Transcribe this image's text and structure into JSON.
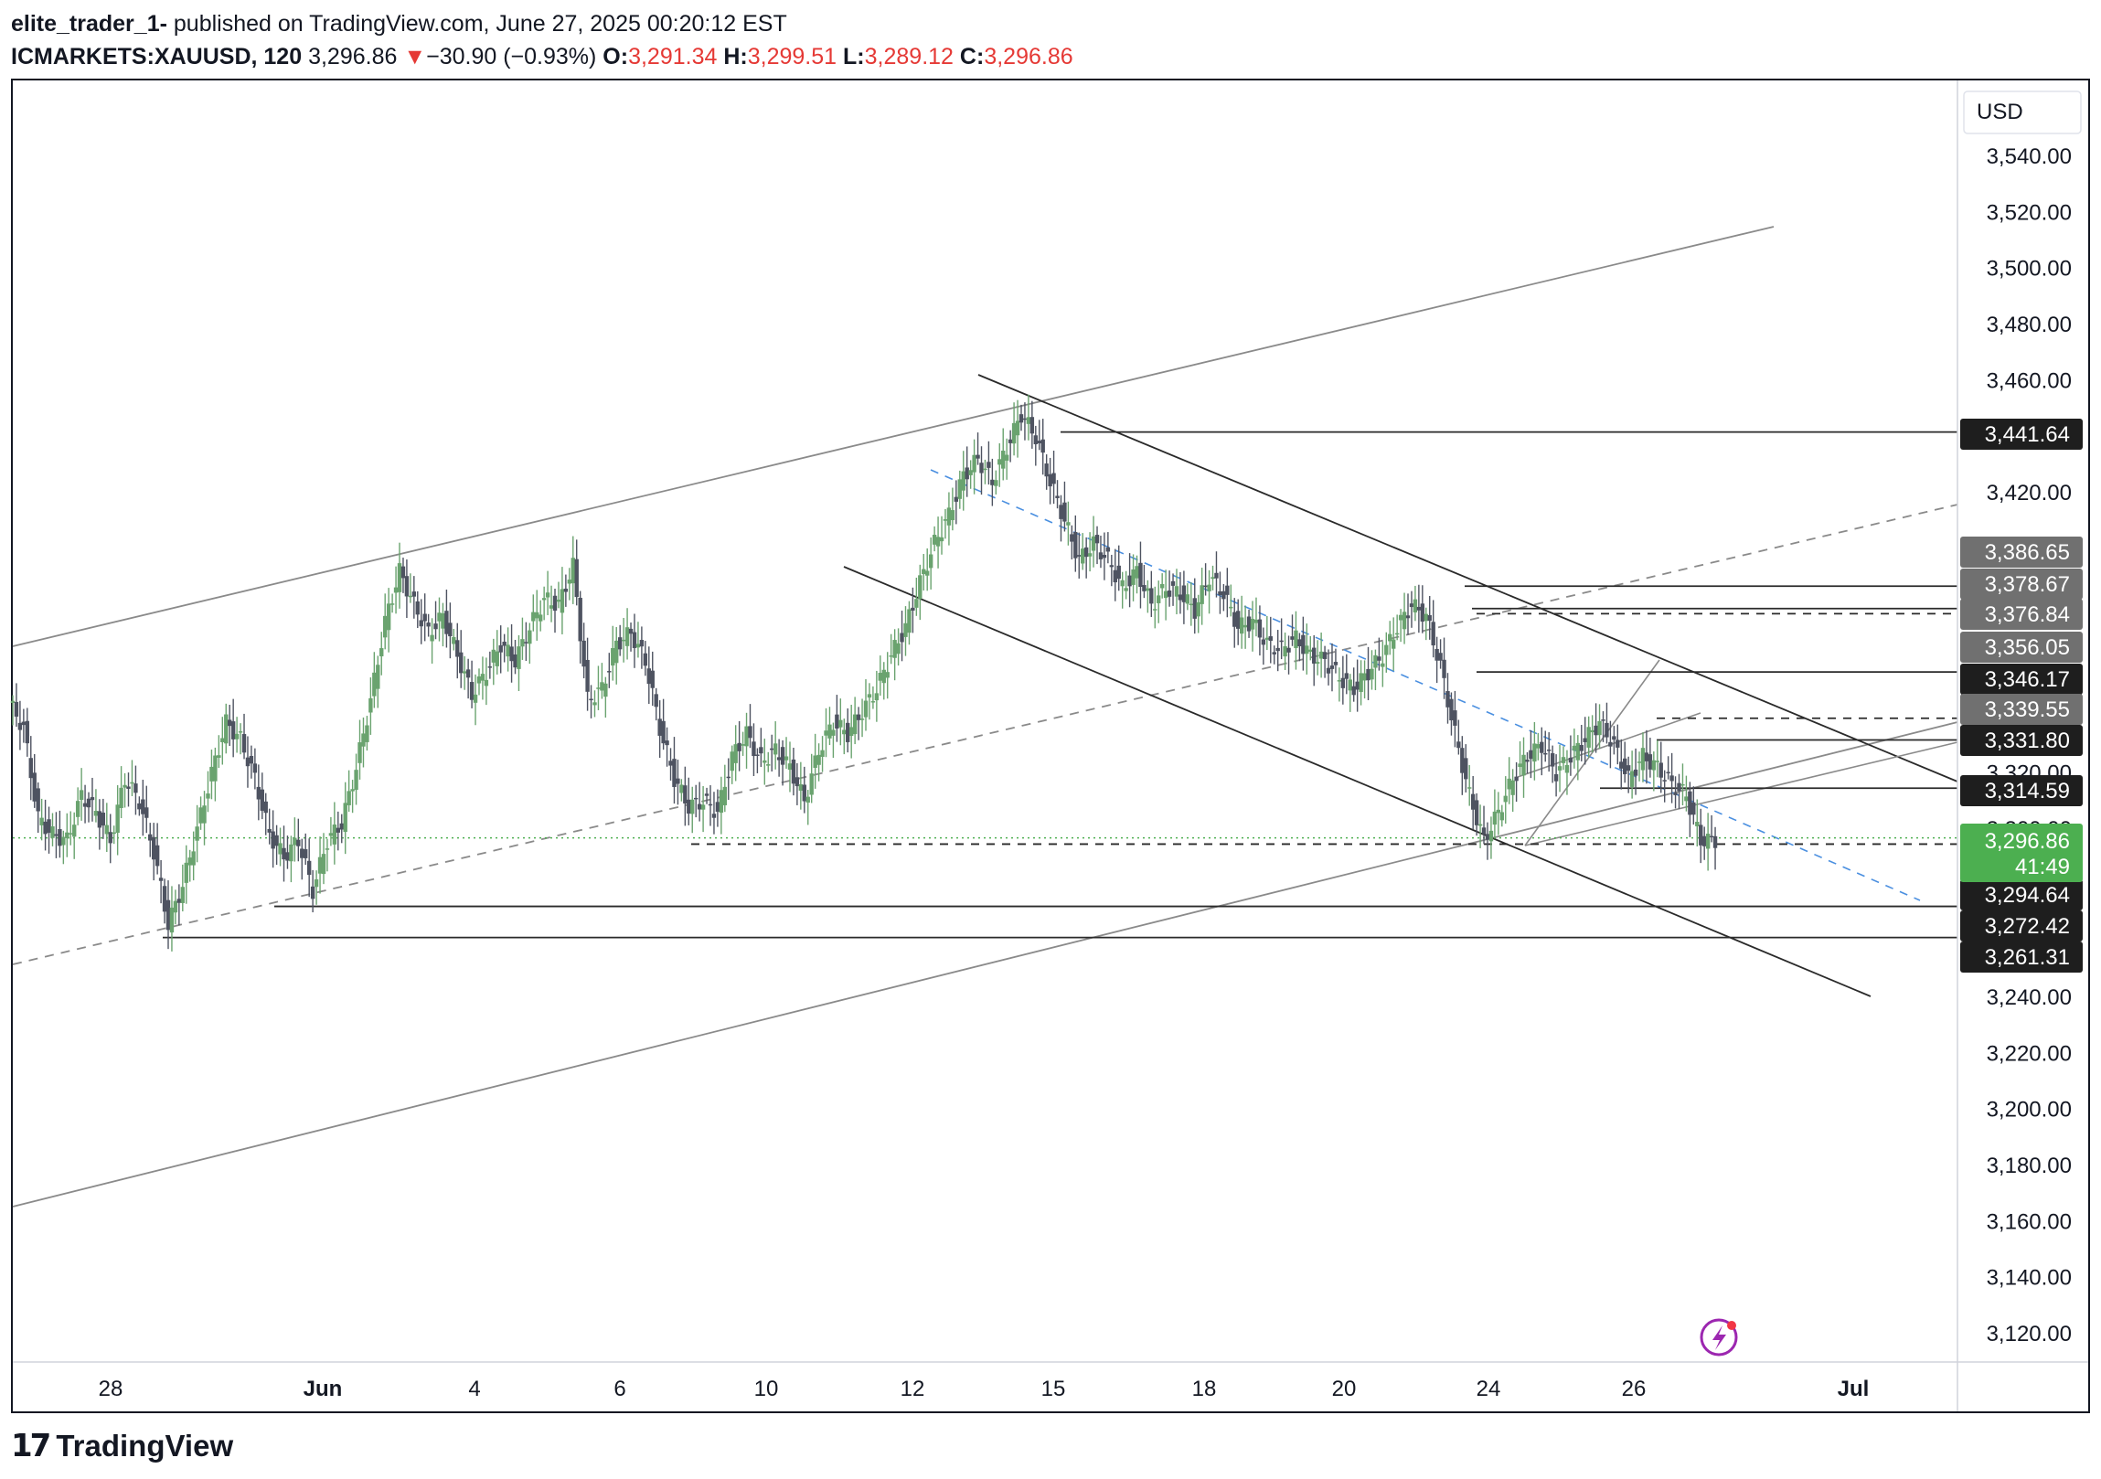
{
  "header": {
    "author": "elite_trader_1-",
    "published": " published on TradingView.com, June 27, 2025 00:20:12 EST",
    "symbol": "ICMARKETS:XAUUSD, 120",
    "last": "3,296.86",
    "change_arrow": "▼",
    "change": "−30.90 (−0.93%)",
    "o_label": "O:",
    "o_value": "3,291.34",
    "h_label": "H:",
    "h_value": "3,299.51",
    "l_label": "L:",
    "l_value": "3,289.12",
    "c_label": "C:",
    "c_value": "3,296.86"
  },
  "footer": {
    "brand": "TradingView",
    "logo_icon": "tradingview-logo-icon"
  },
  "chart_data": {
    "type": "candlestick",
    "currency_label": "USD",
    "ylim": [
      3110,
      3550
    ],
    "y_ticks": [
      "3,540.00",
      "3,520.00",
      "3,500.00",
      "3,480.00",
      "3,460.00",
      "3,420.00",
      "3,240.00",
      "3,220.00",
      "3,200.00",
      "3,180.00",
      "3,160.00",
      "3,140.00",
      "3,120.00"
    ],
    "x_ticks": [
      {
        "label": "28",
        "bold": false
      },
      {
        "label": "Jun",
        "bold": true
      },
      {
        "label": "4",
        "bold": false
      },
      {
        "label": "6",
        "bold": false
      },
      {
        "label": "10",
        "bold": false
      },
      {
        "label": "12",
        "bold": false
      },
      {
        "label": "15",
        "bold": false
      },
      {
        "label": "18",
        "bold": false
      },
      {
        "label": "20",
        "bold": false
      },
      {
        "label": "24",
        "bold": false
      },
      {
        "label": "26",
        "bold": false
      },
      {
        "label": "Jul",
        "bold": true
      }
    ],
    "price_labels": [
      {
        "text": "3,441.64",
        "style": "dark"
      },
      {
        "text": "3,386.65",
        "style": "gray"
      },
      {
        "text": "3,378.67",
        "style": "gray"
      },
      {
        "text": "3,376.84",
        "style": "gray"
      },
      {
        "text": "3,356.05",
        "style": "gray"
      },
      {
        "text": "3,346.17",
        "style": "dark"
      },
      {
        "text": "3,339.55",
        "style": "gray"
      },
      {
        "text": "3,331.80",
        "style": "dark"
      },
      {
        "text": "3,314.59",
        "style": "dark"
      },
      {
        "text": "3,294.64",
        "style": "dark"
      },
      {
        "text": "3,272.42",
        "style": "dark"
      },
      {
        "text": "3,261.31",
        "style": "dark"
      }
    ],
    "current_price": {
      "text": "3,296.86",
      "countdown": "41:49",
      "color": "#4caf50"
    },
    "partial_ticks": [
      "3,320.00",
      "3,300.00"
    ],
    "candle_path": [
      3345,
      3336,
      3304,
      3298,
      3296,
      3312,
      3306,
      3296,
      3318,
      3310,
      3292,
      3266,
      3280,
      3300,
      3320,
      3338,
      3332,
      3318,
      3298,
      3290,
      3296,
      3278,
      3296,
      3302,
      3322,
      3346,
      3374,
      3392,
      3380,
      3370,
      3376,
      3362,
      3348,
      3356,
      3366,
      3360,
      3372,
      3382,
      3380,
      3394,
      3346,
      3350,
      3366,
      3370,
      3360,
      3336,
      3318,
      3308,
      3310,
      3306,
      3326,
      3334,
      3324,
      3328,
      3322,
      3310,
      3328,
      3338,
      3334,
      3342,
      3350,
      3362,
      3372,
      3388,
      3402,
      3412,
      3426,
      3432,
      3424,
      3436,
      3448,
      3440,
      3424,
      3410,
      3396,
      3402,
      3396,
      3386,
      3392,
      3380,
      3386,
      3384,
      3378,
      3390,
      3384,
      3372,
      3374,
      3366,
      3364,
      3368,
      3362,
      3360,
      3354,
      3350,
      3356,
      3362,
      3372,
      3380,
      3376,
      3358,
      3334,
      3312,
      3296,
      3306,
      3318,
      3326,
      3330,
      3320,
      3326,
      3332,
      3338,
      3330,
      3318,
      3326,
      3322,
      3316,
      3312,
      3296
    ]
  }
}
